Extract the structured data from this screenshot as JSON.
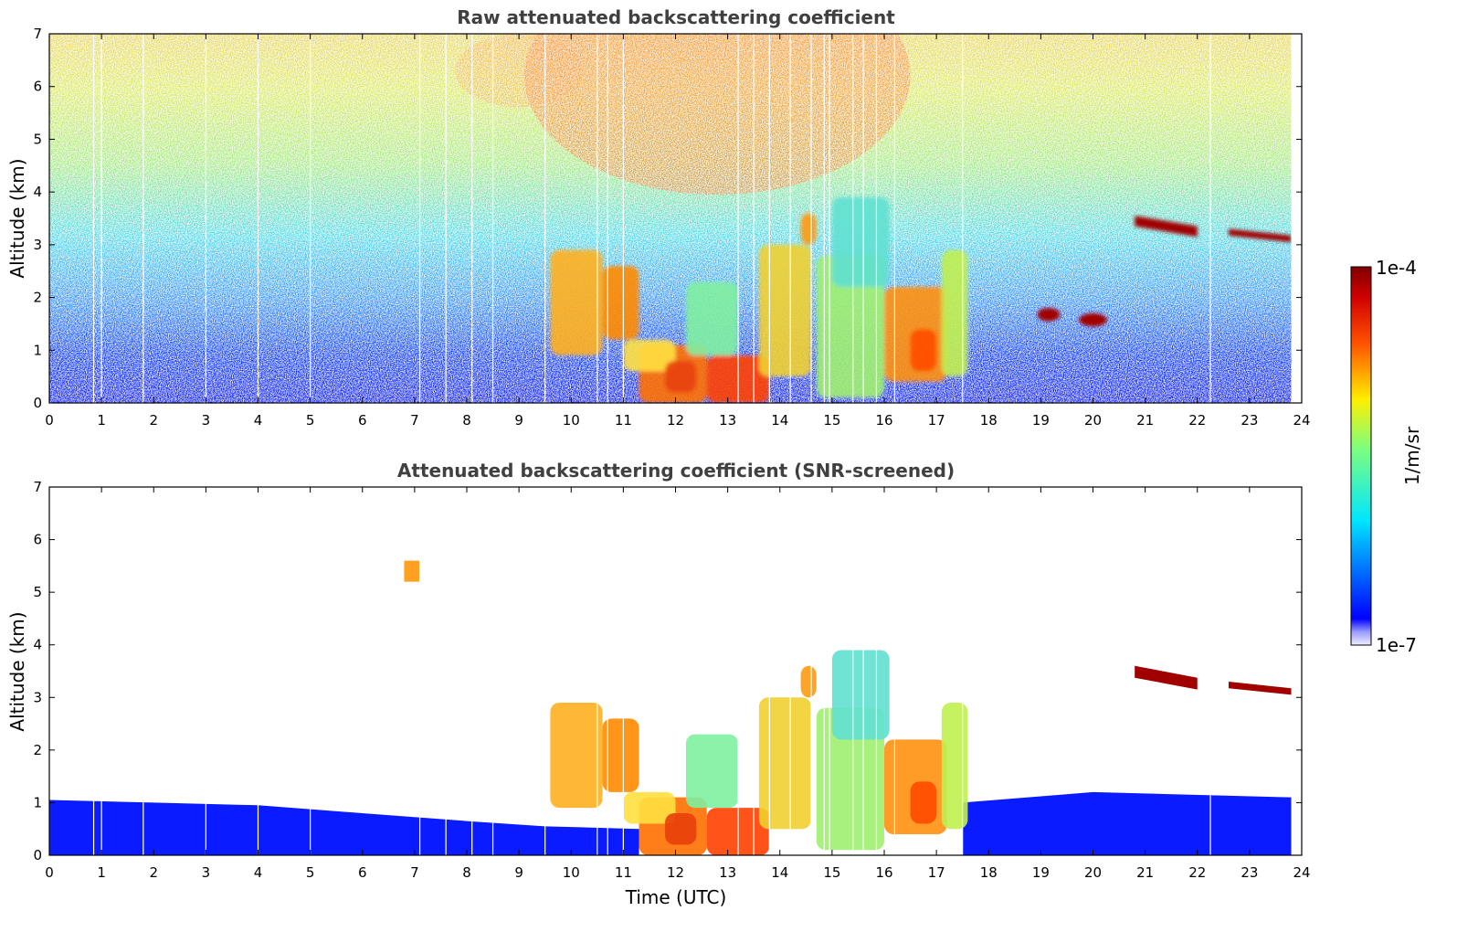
{
  "chart_data": [
    {
      "type": "heatmap",
      "title": "Raw attenuated backscattering coefficient",
      "xlabel": "",
      "ylabel": "Altitude (km)",
      "xlim": [
        0,
        24
      ],
      "ylim": [
        0,
        7
      ],
      "x_ticks": [
        "0",
        "1",
        "2",
        "3",
        "4",
        "5",
        "6",
        "7",
        "8",
        "9",
        "10",
        "11",
        "12",
        "13",
        "14",
        "15",
        "16",
        "17",
        "18",
        "19",
        "20",
        "21",
        "22",
        "23",
        "24"
      ],
      "y_ticks": [
        "0",
        "1",
        "2",
        "3",
        "4",
        "5",
        "6",
        "7"
      ],
      "data_end_time": 23.8,
      "data_gap_times": [
        0.85,
        1.0,
        1.8,
        3.0,
        4.0,
        5.0,
        7.1,
        7.6,
        8.1,
        8.5,
        9.5,
        10.5,
        10.7,
        11.0,
        13.2,
        13.5,
        13.8,
        14.2,
        14.6,
        14.85,
        14.95,
        15.4,
        15.6,
        15.85,
        16.2,
        17.5,
        22.25
      ],
      "features": [
        {
          "name": "boundary layer aerosol",
          "t": [
            0,
            23.8
          ],
          "alt": [
            0,
            1.0
          ],
          "level": "low"
        },
        {
          "name": "upper noise",
          "t": [
            0,
            23.8
          ],
          "alt": [
            1.0,
            7.0
          ],
          "level": "noisy"
        },
        {
          "name": "midday plume",
          "t": [
            9.6,
            17.6
          ],
          "alt": [
            0,
            3.9
          ],
          "level": "high"
        },
        {
          "name": "cloud 1",
          "t": [
            19.0,
            19.3
          ],
          "alt": [
            1.6,
            1.75
          ],
          "level": "max"
        },
        {
          "name": "cloud 2",
          "t": [
            19.8,
            20.2
          ],
          "alt": [
            1.5,
            1.65
          ],
          "level": "max"
        },
        {
          "name": "cloud 3",
          "t": [
            20.8,
            22.0
          ],
          "alt": [
            3.15,
            3.55
          ],
          "level": "max"
        },
        {
          "name": "cloud 4",
          "t": [
            22.6,
            23.8
          ],
          "alt": [
            3.05,
            3.3
          ],
          "level": "max"
        }
      ]
    },
    {
      "type": "heatmap",
      "title": "Attenuated backscattering coefficient (SNR-screened)",
      "xlabel": "Time (UTC)",
      "ylabel": "Altitude (km)",
      "xlim": [
        0,
        24
      ],
      "ylim": [
        0,
        7
      ],
      "x_ticks": [
        "0",
        "1",
        "2",
        "3",
        "4",
        "5",
        "6",
        "7",
        "8",
        "9",
        "10",
        "11",
        "12",
        "13",
        "14",
        "15",
        "16",
        "17",
        "18",
        "19",
        "20",
        "21",
        "22",
        "23",
        "24"
      ],
      "y_ticks": [
        "0",
        "1",
        "2",
        "3",
        "4",
        "5",
        "6",
        "7"
      ],
      "data_end_time": 23.8,
      "screening": "SNR-screened",
      "features": [
        {
          "name": "boundary layer aerosol",
          "t": [
            0,
            23.8
          ],
          "alt": [
            0,
            1.1
          ],
          "level": "low"
        },
        {
          "name": "midday plume",
          "t": [
            9.6,
            17.6
          ],
          "alt": [
            0,
            3.9
          ],
          "level": "high"
        },
        {
          "name": "isolated patch",
          "t": [
            6.8,
            7.1
          ],
          "alt": [
            5.2,
            5.6
          ],
          "level": "high"
        },
        {
          "name": "cloud 3",
          "t": [
            20.8,
            22.0
          ],
          "alt": [
            3.15,
            3.6
          ],
          "level": "max"
        },
        {
          "name": "cloud 4",
          "t": [
            22.6,
            23.8
          ],
          "alt": [
            3.05,
            3.3
          ],
          "level": "max"
        }
      ]
    }
  ],
  "colorbar": {
    "label": "1/m/sr",
    "max_label": "1e-4",
    "min_label": "1e-7",
    "scale": "log",
    "range": [
      1e-07,
      0.0001
    ],
    "colormap": "jet"
  }
}
